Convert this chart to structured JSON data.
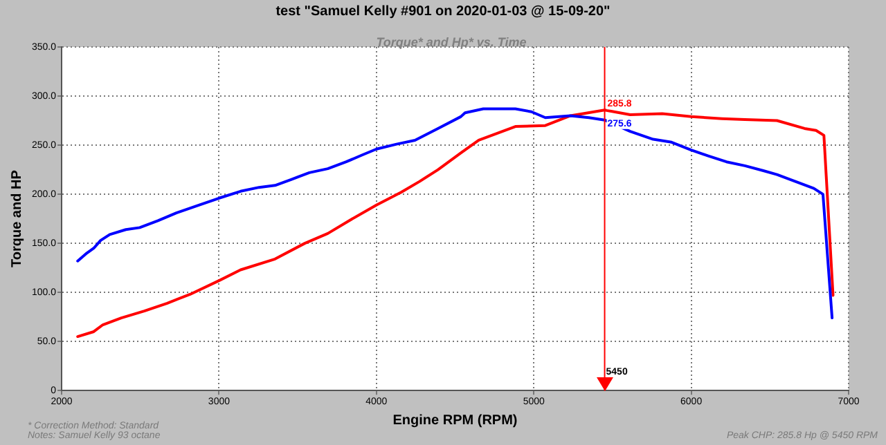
{
  "chart_data": {
    "type": "line",
    "title": "test \"Samuel Kelly #901 on 2020-01-03 @ 15-09-20\"",
    "subtitle": "Torque* and Hp* vs. Time",
    "xlabel": "Engine RPM (RPM)",
    "ylabel": "Torque and HP",
    "xlim": [
      2000,
      7000
    ],
    "xticks": [
      2000,
      3000,
      4000,
      5000,
      6000,
      7000
    ],
    "ylim": [
      0,
      350
    ],
    "yticks": [
      0,
      {
        "value": 50,
        "label": "50.0"
      },
      {
        "value": 100,
        "label": "100.0"
      },
      {
        "value": 150,
        "label": "150.0"
      },
      {
        "value": 200,
        "label": "200.0"
      },
      {
        "value": 250,
        "label": "250.0"
      },
      {
        "value": 300,
        "label": "300.0"
      },
      {
        "value": 350,
        "label": "350.0"
      }
    ],
    "grid": true,
    "legend": false,
    "marker": "none",
    "line_style": "solid",
    "series": [
      {
        "color": "#0000ff",
        "x": [
          2102,
          2160,
          2204,
          2248,
          2306,
          2408,
          2496,
          2612,
          2729,
          2875,
          3000,
          3137,
          3254,
          3356,
          3458,
          3574,
          3691,
          3808,
          3910,
          4000,
          4128,
          4245,
          4391,
          4536,
          4563,
          4679,
          4883,
          4985,
          5073,
          5233,
          5350,
          5450,
          5612,
          5758,
          5875,
          6000,
          6108,
          6224,
          6341,
          6458,
          6545,
          6662,
          6779,
          6837,
          6895
        ],
        "values": [
          132,
          140,
          145,
          153,
          159,
          164,
          166,
          173,
          181,
          189,
          196,
          203,
          207,
          209,
          215,
          222,
          226,
          233,
          240,
          246,
          251,
          255,
          267,
          279,
          283,
          287,
          287,
          284,
          278,
          280,
          278,
          275.6,
          264,
          256,
          253,
          245,
          239,
          233,
          229,
          224,
          220,
          213,
          206,
          200,
          74
        ]
      },
      {
        "color": "#ff0000",
        "x": [
          2102,
          2204,
          2262,
          2379,
          2525,
          2671,
          2816,
          3000,
          3137,
          3356,
          3545,
          3691,
          3837,
          4000,
          4157,
          4274,
          4391,
          4536,
          4650,
          4883,
          5073,
          5233,
          5450,
          5612,
          5816,
          6000,
          6195,
          6341,
          6545,
          6720,
          6793,
          6843,
          6901
        ],
        "values": [
          55,
          60,
          67,
          74,
          81,
          89,
          98,
          112,
          123,
          134,
          150,
          160,
          174,
          189,
          202,
          213,
          225,
          242,
          255,
          269,
          270,
          280,
          285.8,
          281,
          282,
          279,
          277,
          276,
          275,
          267,
          265,
          260,
          97
        ]
      }
    ],
    "ref_lines": [
      {
        "axis": "x",
        "value": 5450,
        "label": "5450",
        "color": "#ff0000"
      }
    ],
    "annotations": [
      {
        "text": "285.8",
        "x": 5450,
        "y": 285.8
      },
      {
        "text": "275.6",
        "x": 5450,
        "y": 275.6
      },
      "* Correction Method: Standard",
      "Notes: Samuel Kelly 93 octane",
      "Peak CHP: 285.8 Hp @ 5450 RPM"
    ]
  }
}
